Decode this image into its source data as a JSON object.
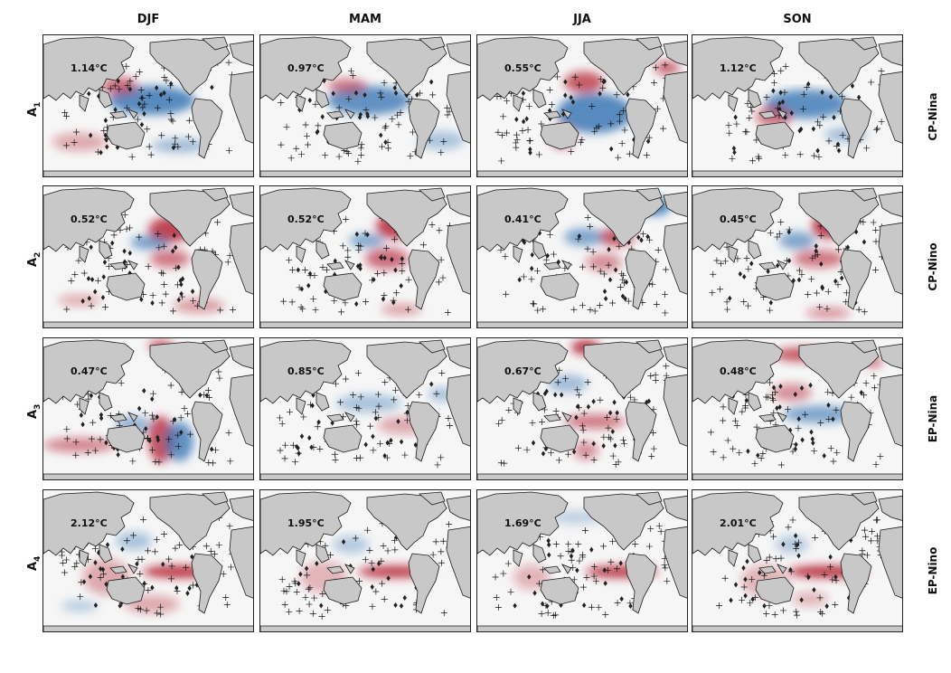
{
  "columns": [
    "DJF",
    "MAM",
    "JJA",
    "SON"
  ],
  "rows": [
    {
      "label": "A",
      "sub": "1",
      "type": "CP-Nina",
      "amps": [
        "1.14°C",
        "0.97°C",
        "0.55°C",
        "1.12°C"
      ]
    },
    {
      "label": "A",
      "sub": "2",
      "type": "CP-Nino",
      "amps": [
        "0.52°C",
        "0.52°C",
        "0.41°C",
        "0.45°C"
      ]
    },
    {
      "label": "A",
      "sub": "3",
      "type": "EP-Nina",
      "amps": [
        "0.47°C",
        "0.85°C",
        "0.67°C",
        "0.48°C"
      ]
    },
    {
      "label": "A",
      "sub": "4",
      "type": "EP-Nino",
      "amps": [
        "2.12°C",
        "1.95°C",
        "1.69°C",
        "2.01°C"
      ]
    }
  ],
  "colors": {
    "land": "#c8c8c8",
    "ocean": "#f6f6f6",
    "warm": "#b2182b",
    "cool": "#2166ac",
    "coast": "#1a1a1a"
  },
  "icons": {
    "stipple_plus": "plus-hatch",
    "stipple_diamond": "diamond-hatch"
  }
}
